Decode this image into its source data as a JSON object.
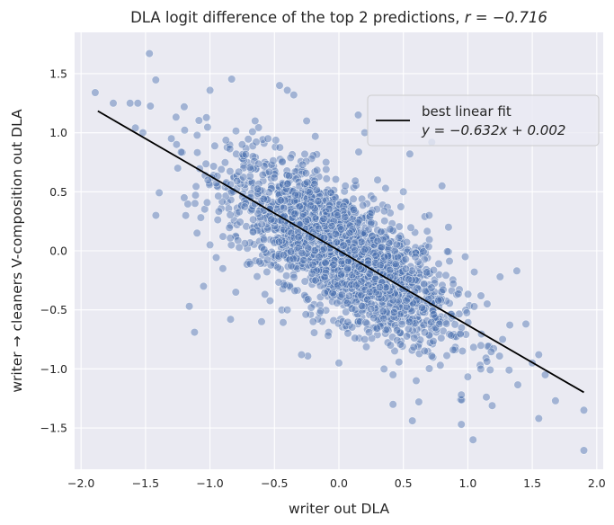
{
  "chart_data": {
    "type": "scatter",
    "title": "DLA logit difference of the top 2 predictions, ",
    "title_math": "r = −0.716",
    "xlabel": "writer out DLA",
    "ylabel": "writer → cleaners V-composition out DLA",
    "xlim": [
      -2.05,
      2.05
    ],
    "ylim": [
      -1.85,
      1.85
    ],
    "xticks": [
      -2.0,
      -1.5,
      -1.0,
      -0.5,
      0.0,
      0.5,
      1.0,
      1.5,
      2.0
    ],
    "xtick_labels": [
      "−2.0",
      "−1.5",
      "−1.0",
      "−0.5",
      "0.0",
      "0.5",
      "1.0",
      "1.5",
      "2.0"
    ],
    "yticks": [
      -1.5,
      -1.0,
      -0.5,
      0.0,
      0.5,
      1.0,
      1.5
    ],
    "ytick_labels": [
      "−1.5",
      "−1.0",
      "−0.5",
      "0.0",
      "0.5",
      "1.0",
      "1.5"
    ],
    "grid": true,
    "background": "#eaeaf2",
    "point_color": "#4c72b0",
    "point_alpha": 0.45,
    "fit_color": "#000000",
    "fit_line": {
      "slope": -0.632,
      "intercept": 0.002,
      "x": [
        -1.87,
        1.9
      ]
    },
    "legend": {
      "placement": "top-right",
      "entries": [
        "best linear fit"
      ],
      "equation": "y = −0.632x + 0.002"
    },
    "series": [
      {
        "values": [
          [
            -1.89,
            1.34
          ],
          [
            -1.75,
            1.25
          ],
          [
            -1.62,
            1.25
          ],
          [
            -1.56,
            1.25
          ],
          [
            -1.47,
            1.67
          ],
          [
            -1.52,
            1.0
          ],
          [
            -1.42,
            0.3
          ],
          [
            -1.2,
            1.22
          ],
          [
            -1.0,
            1.36
          ],
          [
            -0.46,
            1.4
          ],
          [
            -0.4,
            1.36
          ],
          [
            -0.35,
            1.32
          ],
          [
            -0.25,
            1.1
          ],
          [
            0.15,
            1.15
          ],
          [
            0.55,
            0.82
          ],
          [
            0.8,
            0.55
          ],
          [
            0.72,
            0.92
          ],
          [
            0.2,
            1.0
          ],
          [
            -1.16,
            -0.47
          ],
          [
            -1.12,
            -0.69
          ],
          [
            -1.05,
            -0.3
          ],
          [
            -0.84,
            -0.58
          ],
          [
            -0.6,
            -0.6
          ],
          [
            -0.29,
            -0.88
          ],
          [
            0.0,
            -0.95
          ],
          [
            0.35,
            -1.0
          ],
          [
            0.42,
            -1.05
          ],
          [
            0.6,
            -1.1
          ],
          [
            0.62,
            -1.28
          ],
          [
            0.42,
            -1.3
          ],
          [
            0.57,
            -1.44
          ],
          [
            0.95,
            -1.47
          ],
          [
            1.04,
            -1.6
          ],
          [
            0.95,
            -1.22
          ],
          [
            1.1,
            -1.0
          ],
          [
            1.5,
            -0.95
          ],
          [
            1.55,
            -1.42
          ],
          [
            1.68,
            -1.27
          ],
          [
            1.27,
            -0.75
          ],
          [
            1.32,
            -1.01
          ],
          [
            1.45,
            -0.62
          ],
          [
            1.55,
            -0.88
          ],
          [
            1.6,
            -1.05
          ],
          [
            1.9,
            -1.35
          ],
          [
            1.9,
            -1.69
          ],
          [
            1.25,
            -0.22
          ],
          [
            1.15,
            -0.45
          ],
          [
            1.05,
            -0.18
          ],
          [
            0.98,
            -0.05
          ],
          [
            1.38,
            -0.17
          ],
          [
            -1.3,
            0.95
          ],
          [
            -1.25,
            0.7
          ],
          [
            -1.2,
            0.45
          ],
          [
            -1.1,
            0.15
          ],
          [
            -1.0,
            0.05
          ],
          [
            -0.9,
            -0.15
          ],
          [
            -0.8,
            -0.35
          ],
          [
            -0.75,
            0.9
          ],
          [
            -0.65,
            1.1
          ],
          [
            -0.55,
            0.95
          ],
          [
            0.5,
            0.5
          ],
          [
            0.7,
            0.3
          ],
          [
            0.85,
            0.2
          ],
          [
            0.4,
            -0.8
          ],
          [
            0.2,
            -0.75
          ],
          [
            -0.2,
            -0.6
          ],
          [
            -0.4,
            -0.5
          ],
          [
            0.3,
            0.6
          ],
          [
            -0.1,
            0.75
          ],
          [
            0.05,
            0.55
          ]
        ]
      }
    ]
  }
}
